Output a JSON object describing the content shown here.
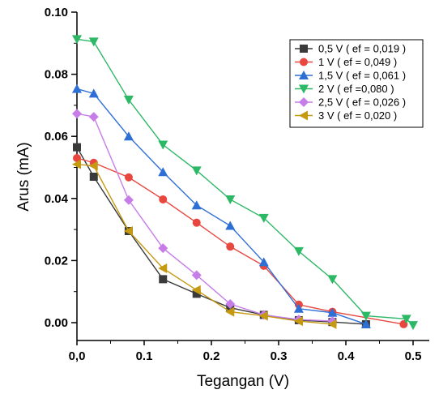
{
  "chart_data": {
    "type": "line",
    "title": "",
    "xlabel": "Tegangan (V)",
    "ylabel": "Arus (mA)",
    "xlim": [
      0,
      0.5
    ],
    "ylim": [
      -0.01,
      0.1
    ],
    "x_ticks": [
      {
        "value": 0.0,
        "label": "0,0"
      },
      {
        "value": 0.1,
        "label": "0.1"
      },
      {
        "value": 0.2,
        "label": "0.2"
      },
      {
        "value": 0.3,
        "label": "0.3"
      },
      {
        "value": 0.4,
        "label": "0.4"
      },
      {
        "value": 0.5,
        "label": "0.5"
      }
    ],
    "y_ticks": [
      {
        "value": 0.0,
        "label": "0.00"
      },
      {
        "value": 0.02,
        "label": "0.02"
      },
      {
        "value": 0.04,
        "label": "0.04"
      },
      {
        "value": 0.06,
        "label": "0.06"
      },
      {
        "value": 0.08,
        "label": "0.08"
      },
      {
        "value": 0.1,
        "label": "0.10"
      }
    ],
    "legend_position": "top-right",
    "grid": false,
    "series": [
      {
        "name": "0,5 V ( ef = 0,019 )",
        "color": "#3a3a3a",
        "marker": "square",
        "points": [
          [
            0.0,
            0.0565
          ],
          [
            0.025,
            0.047
          ],
          [
            0.077,
            0.0295
          ],
          [
            0.128,
            0.014
          ],
          [
            0.178,
            0.0093
          ],
          [
            0.228,
            0.0048
          ],
          [
            0.278,
            0.0025
          ],
          [
            0.33,
            0.0008
          ],
          [
            0.38,
            0.0002
          ],
          [
            0.43,
            -0.0005
          ]
        ]
      },
      {
        "name": "1 V ( ef = 0,049 )",
        "color": "#e8473f",
        "marker": "circle",
        "points": [
          [
            0.0,
            0.053
          ],
          [
            0.025,
            0.0515
          ],
          [
            0.077,
            0.0468
          ],
          [
            0.128,
            0.0397
          ],
          [
            0.178,
            0.0322
          ],
          [
            0.228,
            0.0245
          ],
          [
            0.278,
            0.0183
          ],
          [
            0.33,
            0.0058
          ],
          [
            0.38,
            0.0035
          ],
          [
            0.486,
            -0.0005
          ]
        ]
      },
      {
        "name": "1,5 V ( ef = 0,061 )",
        "color": "#2e6fd6",
        "marker": "triangle-up",
        "points": [
          [
            0.0,
            0.0753
          ],
          [
            0.025,
            0.0738
          ],
          [
            0.077,
            0.06
          ],
          [
            0.128,
            0.0485
          ],
          [
            0.178,
            0.0378
          ],
          [
            0.228,
            0.0312
          ],
          [
            0.278,
            0.0195
          ],
          [
            0.33,
            0.0045
          ],
          [
            0.38,
            0.0032
          ],
          [
            0.43,
            -0.0005
          ]
        ]
      },
      {
        "name": "2 V ( ef =0,080 )",
        "color": "#2db866",
        "marker": "triangle-down",
        "points": [
          [
            0.0,
            0.0913
          ],
          [
            0.025,
            0.0905
          ],
          [
            0.077,
            0.0718
          ],
          [
            0.128,
            0.0573
          ],
          [
            0.178,
            0.049
          ],
          [
            0.228,
            0.0397
          ],
          [
            0.278,
            0.0337
          ],
          [
            0.33,
            0.023
          ],
          [
            0.38,
            0.014
          ],
          [
            0.43,
            0.0022
          ],
          [
            0.49,
            0.0012
          ],
          [
            0.5,
            -0.0008
          ]
        ]
      },
      {
        "name": "2,5 V ( ef = 0,026 )",
        "color": "#c77de8",
        "marker": "diamond",
        "points": [
          [
            0.0,
            0.0673
          ],
          [
            0.025,
            0.0663
          ],
          [
            0.077,
            0.0395
          ],
          [
            0.128,
            0.024
          ],
          [
            0.178,
            0.0153
          ],
          [
            0.228,
            0.006
          ],
          [
            0.278,
            0.0025
          ],
          [
            0.33,
            0.001
          ],
          [
            0.38,
            0.0005
          ]
        ]
      },
      {
        "name": "3 V ( ef = 0,020 )",
        "color": "#c59a10",
        "marker": "triangle-left",
        "points": [
          [
            0.0,
            0.051
          ],
          [
            0.025,
            0.0505
          ],
          [
            0.077,
            0.0295
          ],
          [
            0.128,
            0.0175
          ],
          [
            0.178,
            0.0105
          ],
          [
            0.228,
            0.0035
          ],
          [
            0.278,
            0.0022
          ],
          [
            0.33,
            0.0005
          ],
          [
            0.38,
            -0.0005
          ]
        ]
      }
    ]
  }
}
